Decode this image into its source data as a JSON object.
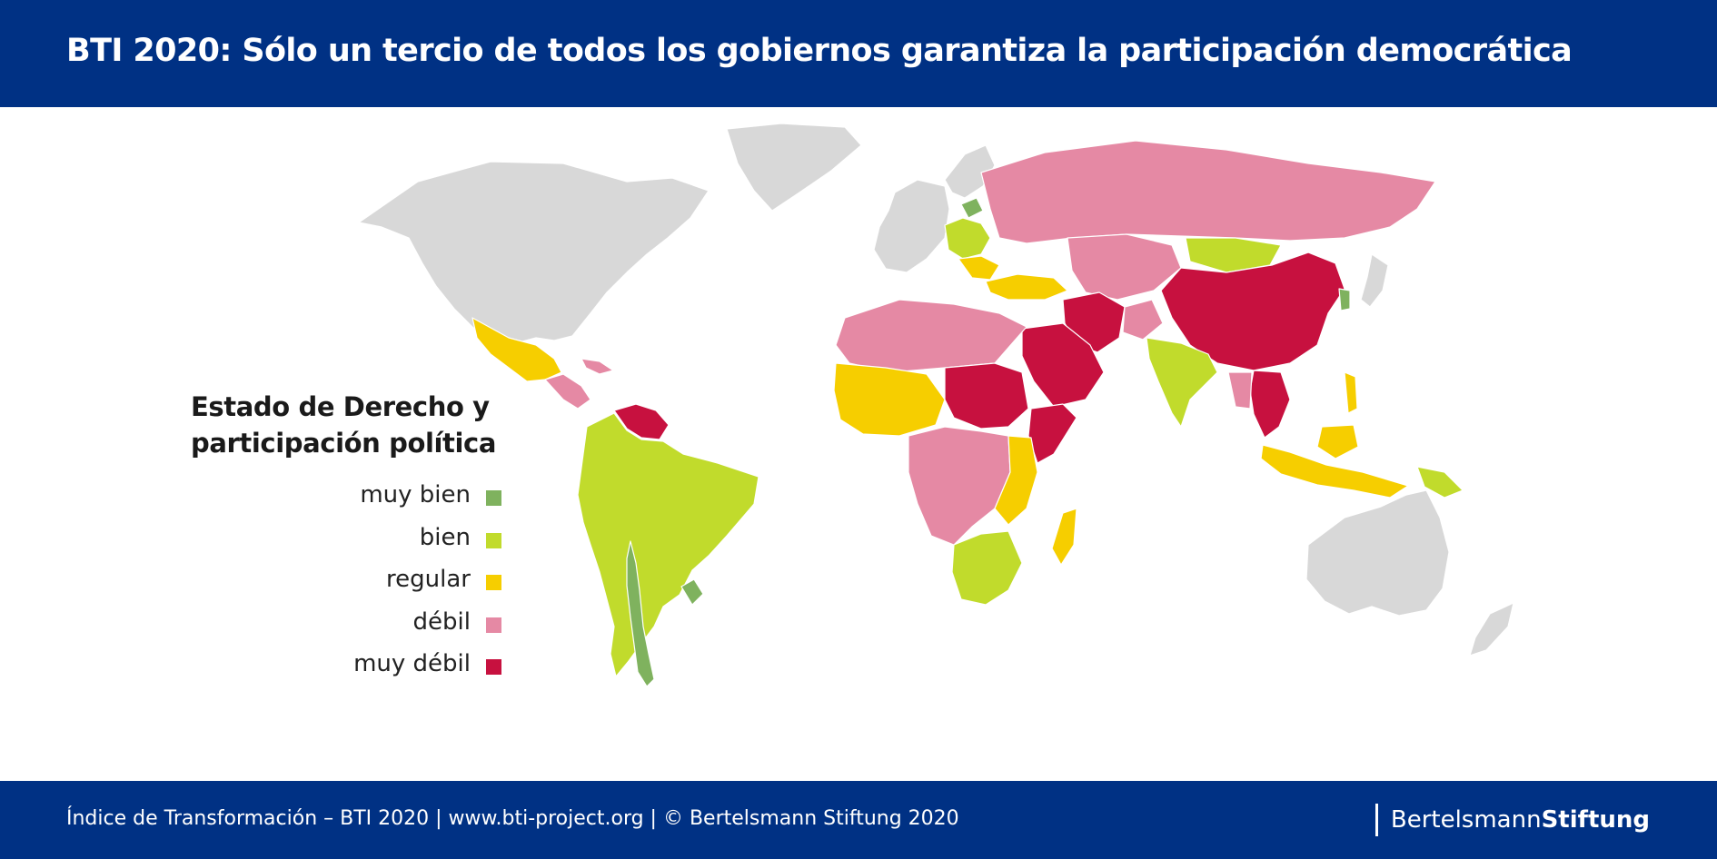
{
  "header": {
    "title": "BTI 2020: Sólo un tercio de todos los gobiernos garantiza la participación democrática"
  },
  "legend": {
    "title_line1": "Estado de Derecho y",
    "title_line2": "participación política",
    "items": [
      {
        "label": "muy bien",
        "color": "#7fb25e"
      },
      {
        "label": "bien",
        "color": "#c1db2c"
      },
      {
        "label": "regular",
        "color": "#f6ce00"
      },
      {
        "label": "débil",
        "color": "#e589a4"
      },
      {
        "label": "muy débil",
        "color": "#c7113f"
      }
    ]
  },
  "map": {
    "no_data_color": "#d8d8d8",
    "regions": [
      {
        "name": "north-america",
        "category": "no-data"
      },
      {
        "name": "greenland",
        "category": "no-data"
      },
      {
        "name": "mexico",
        "category": "regular"
      },
      {
        "name": "central-america",
        "category": "débil"
      },
      {
        "name": "venezuela",
        "category": "muy débil"
      },
      {
        "name": "brazil",
        "category": "bien"
      },
      {
        "name": "chile",
        "category": "muy bien"
      },
      {
        "name": "uruguay",
        "category": "muy bien"
      },
      {
        "name": "western-europe",
        "category": "no-data"
      },
      {
        "name": "central-europe",
        "category": "bien"
      },
      {
        "name": "baltics",
        "category": "muy bien"
      },
      {
        "name": "russia",
        "category": "débil"
      },
      {
        "name": "turkey",
        "category": "regular"
      },
      {
        "name": "mongolia",
        "category": "bien"
      },
      {
        "name": "china",
        "category": "muy débil"
      },
      {
        "name": "central-asia",
        "category": "débil"
      },
      {
        "name": "iran",
        "category": "muy débil"
      },
      {
        "name": "saudi-arabia",
        "category": "muy débil"
      },
      {
        "name": "india",
        "category": "bien"
      },
      {
        "name": "southeast-asia",
        "category": "muy débil"
      },
      {
        "name": "indonesia",
        "category": "regular"
      },
      {
        "name": "papua-new-guinea",
        "category": "bien"
      },
      {
        "name": "south-korea",
        "category": "muy bien"
      },
      {
        "name": "japan",
        "category": "no-data"
      },
      {
        "name": "north-africa",
        "category": "débil"
      },
      {
        "name": "west-africa",
        "category": "regular"
      },
      {
        "name": "sudan",
        "category": "muy débil"
      },
      {
        "name": "central-africa",
        "category": "débil"
      },
      {
        "name": "east-africa",
        "category": "regular"
      },
      {
        "name": "southern-africa",
        "category": "bien"
      },
      {
        "name": "madagascar",
        "category": "regular"
      },
      {
        "name": "australia",
        "category": "no-data"
      },
      {
        "name": "new-zealand",
        "category": "no-data"
      }
    ]
  },
  "footer": {
    "source": "Índice de Transformación – BTI 2020 | www.bti-project.org | © Bertelsmann Stiftung 2020",
    "brand_regular": "Bertelsmann",
    "brand_bold": "Stiftung"
  }
}
